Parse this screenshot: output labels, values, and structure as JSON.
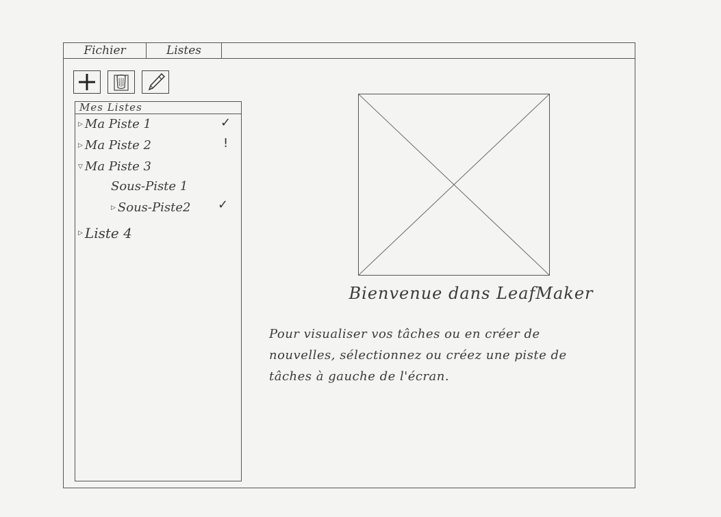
{
  "menubar": {
    "items": [
      {
        "label": "Fichier"
      },
      {
        "label": "Listes"
      }
    ]
  },
  "toolbar": {
    "buttons": [
      {
        "icon": "plus-icon"
      },
      {
        "icon": "trash-icon"
      },
      {
        "icon": "pencil-icon"
      }
    ]
  },
  "tree": {
    "header": "Mes Listes",
    "items": [
      {
        "label": "Ma Piste 1",
        "status": "✓",
        "expander": "▷"
      },
      {
        "label": "Ma Piste 2",
        "status": "!",
        "expander": "▷"
      },
      {
        "label": "Ma Piste 3",
        "status": "",
        "expander": "▽"
      },
      {
        "label": "Sous-Piste 1",
        "status": "",
        "expander": ""
      },
      {
        "label": "Sous-Piste2",
        "status": "✓",
        "expander": "▷"
      },
      {
        "label": "Liste 4",
        "status": "",
        "expander": "▷"
      }
    ]
  },
  "main": {
    "title": "Bienvenue dans LeafMaker",
    "description": "Pour visualiser vos tâches ou en créer de nouvelles, sélectionnez ou créez une piste de tâches à gauche de l'écran."
  }
}
